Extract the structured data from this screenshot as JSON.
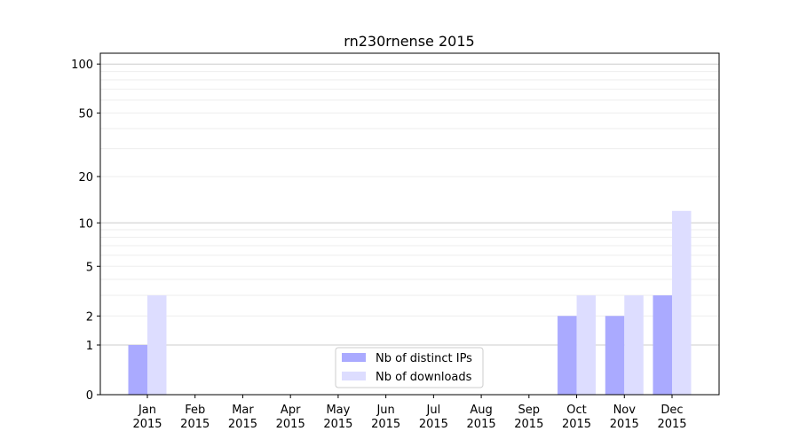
{
  "chart_data": {
    "type": "bar",
    "title": "rn230rnense 2015",
    "xlabel": "",
    "ylabel": "",
    "yscale": "log(1+y)",
    "ylim": [
      0,
      110
    ],
    "yticks": [
      0,
      1,
      2,
      5,
      10,
      20,
      50,
      100
    ],
    "grid": true,
    "legend_position": "bottom-center",
    "categories": [
      "Jan\n2015",
      "Feb\n2015",
      "Mar\n2015",
      "Apr\n2015",
      "May\n2015",
      "Jun\n2015",
      "Jul\n2015",
      "Aug\n2015",
      "Sep\n2015",
      "Oct\n2015",
      "Nov\n2015",
      "Dec\n2015"
    ],
    "series": [
      {
        "name": "Nb of distinct IPs",
        "color": "#aaaaff",
        "values": [
          1,
          0,
          0,
          0,
          0,
          0,
          0,
          0,
          0,
          2,
          2,
          3
        ]
      },
      {
        "name": "Nb of downloads",
        "color": "#ddddff",
        "values": [
          3,
          0,
          0,
          0,
          0,
          0,
          0,
          0,
          0,
          3,
          3,
          12
        ]
      }
    ]
  }
}
